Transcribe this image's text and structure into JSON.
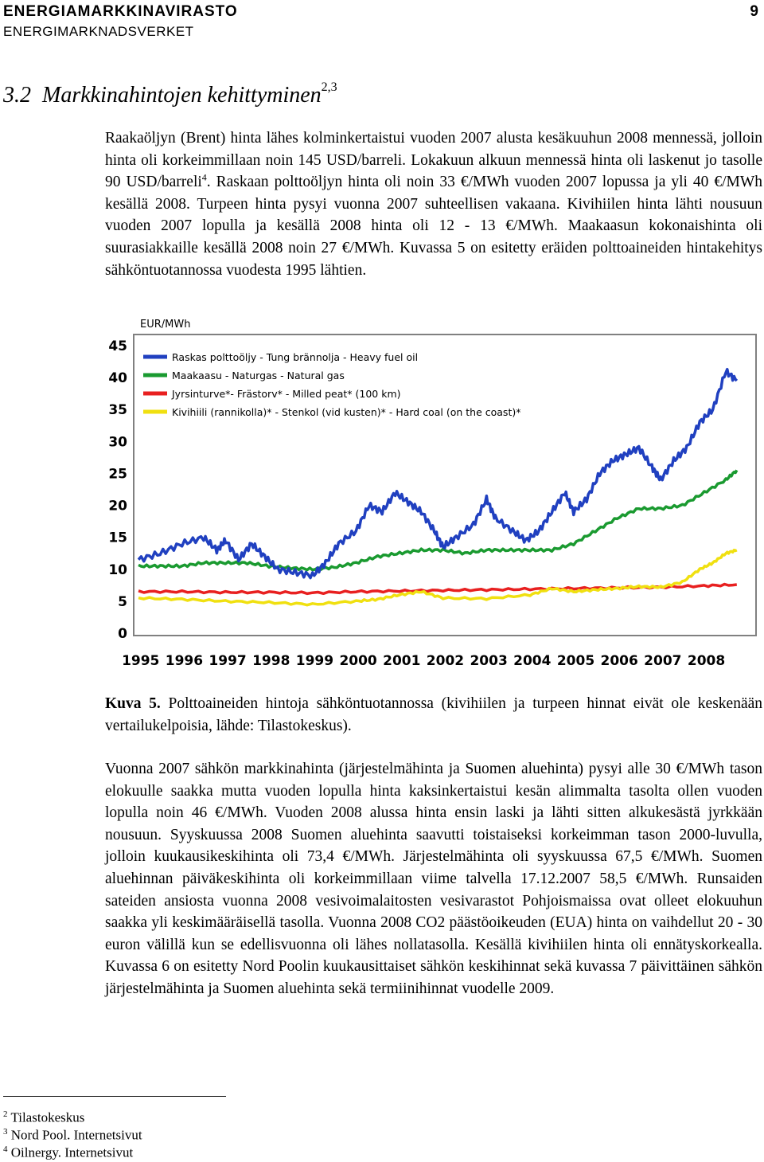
{
  "header": {
    "title": "ENERGIAMARKKINAVIRASTO",
    "page_number": "9",
    "subtitle": "ENERGIMARKNADSVERKET"
  },
  "section": {
    "number": "3.2",
    "title": "Markkinahintojen kehittyminen",
    "refs": "2,3"
  },
  "paragraph1": {
    "text_a": "Raakaöljyn (Brent) hinta lähes kolminkertaistui vuoden 2007 alusta kesäkuuhun 2008 mennessä, jolloin hinta oli korkeimmillaan noin 145 USD/barreli. Lokakuun alkuun mennessä hinta oli laskenut jo tasolle 90 USD/barreli",
    "ref": "4",
    "text_b": ". Raskaan polttoöljyn hinta oli noin 33 €/MWh vuoden 2007 lopussa ja yli 40 €/MWh kesällä 2008. Turpeen hinta pysyi vuonna 2007 suhteellisen vakaana. Kivihiilen hinta lähti nousuun vuoden 2007 lopulla ja kesällä 2008 hinta oli 12 - 13 €/MWh. Maakaasun kokonaishinta oli suurasiakkaille kesällä 2008 noin 27 €/MWh. Kuvassa 5 on esitetty eräiden polttoaineiden hintakehitys sähköntuotannossa vuodesta 1995 lähtien."
  },
  "chart_data": {
    "type": "line",
    "ylabel": "EUR/MWh",
    "ylim": [
      0,
      45
    ],
    "yticks": [
      "0",
      "5",
      "10",
      "15",
      "20",
      "25",
      "30",
      "35",
      "40",
      "45"
    ],
    "xticks": [
      "1995",
      "1996",
      "1997",
      "1998",
      "1999",
      "2000",
      "2001",
      "2002",
      "2003",
      "2004",
      "2005",
      "2006",
      "2007",
      "2008"
    ],
    "grid": false,
    "legend_placement": "top-left",
    "series": [
      {
        "name": "Raskas polttoöljy - Tung brännolja - Heavy fuel oil",
        "color": "#2040c0",
        "points": [
          [
            1995.0,
            11.5
          ],
          [
            1995.5,
            12.5
          ],
          [
            1996.0,
            14
          ],
          [
            1996.5,
            15
          ],
          [
            1996.8,
            13
          ],
          [
            1997.0,
            14.5
          ],
          [
            1997.3,
            11.5
          ],
          [
            1997.6,
            14
          ],
          [
            1997.9,
            12
          ],
          [
            1998.2,
            10
          ],
          [
            1998.6,
            9.5
          ],
          [
            1999.0,
            9.0
          ],
          [
            1999.3,
            11
          ],
          [
            1999.6,
            14
          ],
          [
            2000.0,
            16
          ],
          [
            2000.3,
            20
          ],
          [
            2000.6,
            19
          ],
          [
            2000.9,
            22
          ],
          [
            2001.2,
            20.5
          ],
          [
            2001.5,
            19
          ],
          [
            2001.8,
            16
          ],
          [
            2002.0,
            13.5
          ],
          [
            2002.3,
            15
          ],
          [
            2002.7,
            17
          ],
          [
            2003.0,
            21
          ],
          [
            2003.2,
            18
          ],
          [
            2003.6,
            16
          ],
          [
            2003.9,
            14.5
          ],
          [
            2004.2,
            16
          ],
          [
            2004.5,
            19
          ],
          [
            2004.8,
            22
          ],
          [
            2005.0,
            19
          ],
          [
            2005.3,
            21
          ],
          [
            2005.6,
            25
          ],
          [
            2005.9,
            27
          ],
          [
            2006.2,
            28
          ],
          [
            2006.5,
            29
          ],
          [
            2006.8,
            26
          ],
          [
            2007.0,
            24
          ],
          [
            2007.3,
            27
          ],
          [
            2007.6,
            29
          ],
          [
            2007.9,
            33
          ],
          [
            2008.2,
            35
          ],
          [
            2008.5,
            41
          ],
          [
            2008.75,
            39.5
          ]
        ]
      },
      {
        "name": "Maakaasu - Naturgas - Natural gas",
        "color": "#1a9a30",
        "points": [
          [
            1995.0,
            10.5
          ],
          [
            1995.5,
            10.5
          ],
          [
            1996.0,
            10.5
          ],
          [
            1996.5,
            11
          ],
          [
            1997.0,
            11
          ],
          [
            1997.5,
            11
          ],
          [
            1998.0,
            10.5
          ],
          [
            1998.5,
            10.2
          ],
          [
            1999.0,
            10
          ],
          [
            1999.5,
            10.3
          ],
          [
            2000.0,
            11
          ],
          [
            2000.5,
            12
          ],
          [
            2001.0,
            12.5
          ],
          [
            2001.5,
            13
          ],
          [
            2002.0,
            13
          ],
          [
            2002.5,
            12.5
          ],
          [
            2003.0,
            13
          ],
          [
            2003.5,
            13
          ],
          [
            2004.0,
            13
          ],
          [
            2004.5,
            13
          ],
          [
            2005.0,
            14
          ],
          [
            2005.5,
            16
          ],
          [
            2006.0,
            18
          ],
          [
            2006.5,
            19.5
          ],
          [
            2007.0,
            19.5
          ],
          [
            2007.5,
            20
          ],
          [
            2008.0,
            22
          ],
          [
            2008.5,
            24
          ],
          [
            2008.75,
            25.5
          ]
        ]
      },
      {
        "name": "Jyrsinturve*- Frästorv* - Milled peat* (100 km)",
        "color": "#e82020",
        "points": [
          [
            1995.0,
            6.5
          ],
          [
            1996.0,
            6.5
          ],
          [
            1997.0,
            6.4
          ],
          [
            1998.0,
            6.4
          ],
          [
            1999.0,
            6.3
          ],
          [
            2000.0,
            6.5
          ],
          [
            2001.0,
            6.6
          ],
          [
            2002.0,
            6.7
          ],
          [
            2003.0,
            6.8
          ],
          [
            2004.0,
            6.9
          ],
          [
            2005.0,
            7.0
          ],
          [
            2006.0,
            7.1
          ],
          [
            2007.0,
            7.2
          ],
          [
            2008.0,
            7.4
          ],
          [
            2008.75,
            7.6
          ]
        ]
      },
      {
        "name": "Kivihiili (rannikolla)* - Stenkol (vid kusten)* - Hard coal (on the coast)*",
        "color": "#f0e010",
        "points": [
          [
            1995.0,
            5.5
          ],
          [
            1996.0,
            5.3
          ],
          [
            1997.0,
            5.0
          ],
          [
            1998.0,
            4.8
          ],
          [
            1999.0,
            4.5
          ],
          [
            2000.0,
            5.0
          ],
          [
            2000.5,
            5.3
          ],
          [
            2001.0,
            6.0
          ],
          [
            2001.5,
            6.5
          ],
          [
            2002.0,
            5.5
          ],
          [
            2003.0,
            5.4
          ],
          [
            2004.0,
            6.0
          ],
          [
            2004.5,
            7.0
          ],
          [
            2005.0,
            6.5
          ],
          [
            2005.5,
            6.8
          ],
          [
            2006.0,
            7.0
          ],
          [
            2006.5,
            7.3
          ],
          [
            2007.0,
            7.2
          ],
          [
            2007.5,
            8.0
          ],
          [
            2007.9,
            10
          ],
          [
            2008.2,
            11
          ],
          [
            2008.5,
            12.5
          ],
          [
            2008.75,
            13
          ]
        ]
      }
    ]
  },
  "caption": {
    "label": "Kuva 5.",
    "text": "Polttoaineiden hintoja sähköntuotannossa (kivihiilen ja turpeen hinnat eivät ole keskenään vertailukelpoisia, lähde: Tilastokeskus)."
  },
  "paragraph2": {
    "text": "Vuonna 2007 sähkön markkinahinta (järjestelmähinta ja Suomen aluehinta) pysyi alle 30 €/MWh tason elokuulle saakka mutta vuoden lopulla hinta kaksinkertaistui kesän alimmalta tasolta ollen vuoden lopulla noin 46 €/MWh. Vuoden 2008 alussa hinta ensin laski ja lähti sitten alkukesästä jyrkkään nousuun. Syyskuussa 2008 Suomen aluehinta saavutti toistaiseksi korkeimman tason 2000-luvulla, jolloin kuukausikeskihinta oli 73,4 €/MWh. Järjestelmähinta oli syyskuussa 67,5 €/MWh. Suomen aluehinnan päiväkeskihinta oli korkeimmillaan viime talvella 17.12.2007 58,5 €/MWh. Runsaiden sateiden ansiosta vuonna 2008 vesivoimalaitosten vesivarastot Pohjoismaissa ovat olleet elokuuhun saakka yli keskimääräisellä tasolla. Vuonna 2008 CO2 päästöoikeuden (EUA) hinta on vaihdellut 20 - 30 euron välillä kun se edellisvuonna oli lähes nollatasolla. Kesällä kivihiilen hinta oli ennätyskorkealla. Kuvassa 6 on esitetty Nord Poolin kuukausittaiset sähkön keskihinnat sekä kuvassa 7 päivittäinen sähkön järjestelmähinta ja Suomen aluehinta sekä termiinihinnat vuodelle 2009."
  },
  "footnotes": [
    {
      "num": "2",
      "text": "Tilastokeskus"
    },
    {
      "num": "3",
      "text": "Nord Pool. Internetsivut"
    },
    {
      "num": "4",
      "text": "Oilnergy. Internetsivut"
    }
  ]
}
